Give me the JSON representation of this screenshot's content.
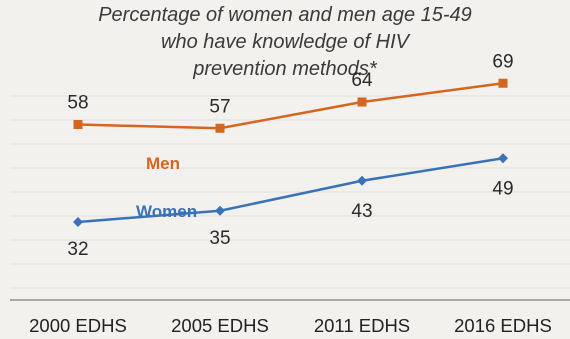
{
  "chart_data": {
    "type": "line",
    "title_lines": [
      "Percentage of women and men age 15-49",
      "who have knowledge of HIV",
      "prevention methods*"
    ],
    "categories": [
      "2000 EDHS",
      "2005 EDHS",
      "2011 EDHS",
      "2016 EDHS"
    ],
    "series": [
      {
        "name": "Men",
        "values": [
          58,
          57,
          64,
          69
        ],
        "color": "#d4661f",
        "marker": "square"
      },
      {
        "name": "Women",
        "values": [
          32,
          35,
          43,
          49
        ],
        "color": "#3a72b8",
        "marker": "diamond"
      }
    ],
    "xlabel": "",
    "ylabel": "",
    "ylim": [
      20,
      80
    ],
    "grid": true,
    "legend": "inline labels"
  }
}
